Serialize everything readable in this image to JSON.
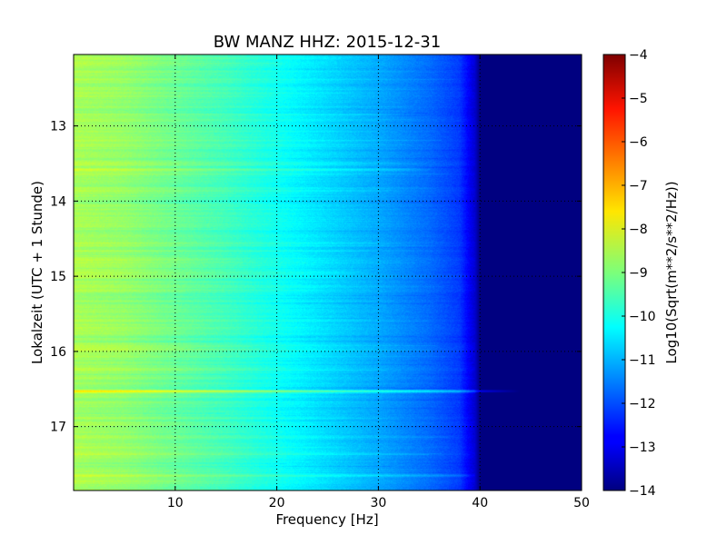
{
  "chart_data": {
    "type": "heatmap",
    "title": "BW MANZ HHZ: 2015-12-31",
    "xlabel": "Frequency [Hz]",
    "ylabel": "Lokalzeit (UTC + 1 Stunde)",
    "xlim": [
      0,
      50
    ],
    "ylim": [
      12.05,
      17.85
    ],
    "y_inverted": true,
    "x_ticks": [
      10,
      20,
      30,
      40,
      50
    ],
    "y_ticks": [
      13,
      14,
      15,
      16,
      17
    ],
    "grid": true,
    "colormap": "jet",
    "colorbar": {
      "label": "Log10(Sqrt(m**2/s**2/Hz))",
      "range": [
        -14,
        -4
      ],
      "ticks": [
        -14,
        -13,
        -12,
        -11,
        -10,
        -9,
        -8,
        -7,
        -6,
        -5,
        -4
      ]
    },
    "level_profile": {
      "frequency_hz": [
        0,
        5,
        10,
        15,
        20,
        25,
        30,
        35,
        38,
        39.5,
        40,
        50
      ],
      "log10_amplitude": [
        -8.6,
        -8.8,
        -9.2,
        -9.6,
        -10.1,
        -10.6,
        -11.1,
        -11.7,
        -12.2,
        -13.2,
        -14,
        -14
      ]
    },
    "bright_bands": [
      {
        "time": 16.53,
        "freq_max_hz": 44,
        "log10_boost": 1.4
      },
      {
        "time": 17.65,
        "freq_max_hz": 42,
        "log10_boost": 0.6
      },
      {
        "time": 13.58,
        "freq_max_hz": 36,
        "log10_boost": 0.5
      },
      {
        "time": 12.85,
        "freq_max_hz": 33,
        "log10_boost": 0.35
      },
      {
        "time": 14.95,
        "freq_max_hz": 30,
        "log10_boost": 0.3
      }
    ]
  }
}
